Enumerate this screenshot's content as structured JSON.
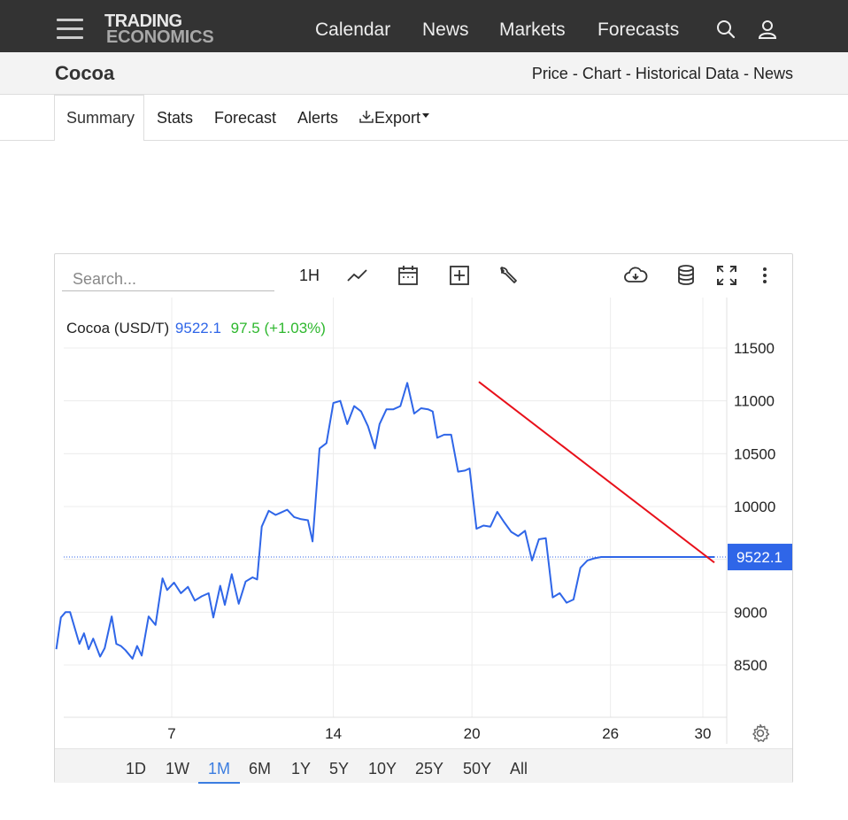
{
  "nav": {
    "logo_line1": "TRADING",
    "logo_line2": "ECONOMICS",
    "links": [
      "Calendar",
      "News",
      "Markets",
      "Forecasts"
    ]
  },
  "page": {
    "title": "Cocoa",
    "sublinks": [
      "Price",
      "Chart",
      "Historical Data",
      "News"
    ],
    "separator": "-"
  },
  "tabs": [
    "Summary",
    "Stats",
    "Forecast",
    "Alerts",
    "Export"
  ],
  "chart_toolbar": {
    "search_placeholder": "Search...",
    "interval": "1H"
  },
  "legend": {
    "name": "Cocoa (USD/T)",
    "price": "9522.1",
    "change": "97.5",
    "change_pct": "(+1.03%)"
  },
  "ranges": [
    "1D",
    "1W",
    "1M",
    "6M",
    "1Y",
    "5Y",
    "10Y",
    "25Y",
    "50Y",
    "All"
  ],
  "active_range": "1M",
  "colors": {
    "topbar": "#333333",
    "line": "#2f66e8",
    "trendline": "#e8101a",
    "positive": "#2eb82e",
    "accent": "#3b7de0"
  },
  "chart_data": {
    "type": "line",
    "title": "Cocoa (USD/T)",
    "ylim": [
      8000,
      11900
    ],
    "y_ticks": [
      8500,
      9000,
      9500,
      10000,
      10500,
      11000,
      11500
    ],
    "y_tick_labels": [
      "8500",
      "9000",
      "9500",
      "10000",
      "10500",
      "11000",
      "11500"
    ],
    "x_ticks": [
      7,
      14,
      20,
      26,
      30
    ],
    "x_tick_labels": [
      "7",
      "14",
      "20",
      "26",
      "30"
    ],
    "last_value_label": "9522.1",
    "last_value": 9522.1,
    "series": [
      {
        "x": [
          2.0,
          2.2,
          2.4,
          2.6,
          3.0,
          3.2,
          3.4,
          3.6,
          3.9,
          4.1,
          4.4,
          4.6,
          4.8,
          5.0,
          5.3,
          5.5,
          5.7,
          6.0,
          6.3,
          6.6,
          6.8,
          7.1,
          7.4,
          7.7,
          8.0,
          8.3,
          8.6,
          8.8,
          9.1,
          9.3,
          9.6,
          9.9,
          10.2,
          10.5,
          10.7,
          10.9,
          11.2,
          11.5,
          11.7,
          12.0,
          12.3,
          12.6,
          12.9,
          13.1,
          13.4,
          13.7,
          14.0,
          14.3,
          14.6,
          14.9,
          15.2,
          15.5,
          15.8,
          16.0,
          16.3,
          16.6,
          16.9,
          17.2,
          17.5,
          17.8,
          18.1,
          18.3,
          18.5,
          18.8,
          19.1,
          19.4,
          19.7,
          19.9,
          20.2,
          20.4,
          20.5,
          20.8,
          21.1,
          21.4,
          21.7,
          22.0,
          22.3,
          22.6,
          22.9,
          23.2,
          23.5,
          23.8,
          24.1,
          24.4,
          24.7,
          25.0,
          25.3,
          25.6,
          26.0,
          26.4,
          26.8,
          27.1,
          27.4,
          27.8,
          28.2,
          28.6,
          28.9,
          29.0,
          29.1,
          29.3,
          29.5,
          29.7,
          29.9,
          30.1,
          30.3,
          30.5
        ],
        "y": [
          8650,
          8950,
          9000,
          9000,
          8700,
          8800,
          8650,
          8750,
          8580,
          8660,
          8960,
          8700,
          8680,
          8640,
          8560,
          8680,
          8590,
          8960,
          8880,
          9320,
          9210,
          9280,
          9180,
          9240,
          9110,
          9150,
          9180,
          8950,
          9250,
          9070,
          9360,
          9080,
          9290,
          9330,
          9310,
          9810,
          9960,
          9920,
          9940,
          9970,
          9900,
          9880,
          9870,
          9670,
          10550,
          10600,
          10980,
          11000,
          10780,
          10950,
          10900,
          10760,
          10550,
          10780,
          10920,
          10920,
          10950,
          11170,
          10880,
          10930,
          10920,
          10900,
          10650,
          10680,
          10680,
          10330,
          10340,
          10360,
          9790,
          9810,
          9820,
          9810,
          9950,
          9850,
          9760,
          9720,
          9770,
          9490,
          9690,
          9700,
          9140,
          9180,
          9090,
          9120,
          9420,
          9490,
          9510,
          9522.1,
          9522.1,
          9522.1,
          9522.1,
          9522.1,
          9522.1,
          9522.1,
          9522.1,
          9522.1,
          9522.1,
          9522.1,
          9522.1,
          9522.1,
          9522.1,
          9522.1,
          9522.1,
          9522.1,
          9522.1,
          9522.1
        ],
        "color": "#2f66e8"
      }
    ],
    "trendline": {
      "x": [
        20.3,
        30.5
      ],
      "y": [
        11180,
        9470
      ]
    },
    "grid": true
  }
}
